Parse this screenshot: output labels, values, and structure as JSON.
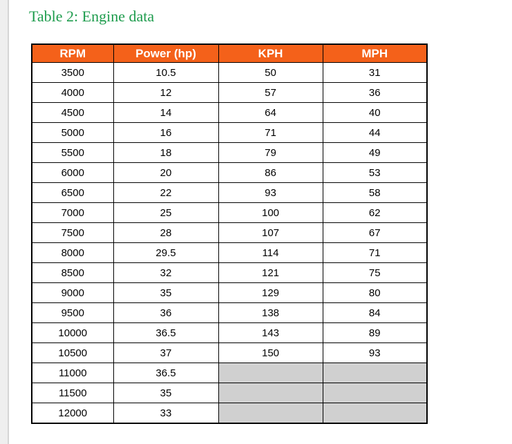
{
  "page": {
    "title": "Table 2: Engine data"
  },
  "colors": {
    "title_color": "#1E9C4D",
    "header_bg": "#F4611A",
    "header_text": "#FFFFFF",
    "empty_cell_bg": "#D0D0D0",
    "border_color": "#000000",
    "page_edge_bg": "#EFEFEF",
    "page_edge_border": "#D5D5D5"
  },
  "table": {
    "headers": [
      "RPM",
      "Power (hp)",
      "KPH",
      "MPH"
    ],
    "rows": [
      [
        "3500",
        "10.5",
        "50",
        "31"
      ],
      [
        "4000",
        "12",
        "57",
        "36"
      ],
      [
        "4500",
        "14",
        "64",
        "40"
      ],
      [
        "5000",
        "16",
        "71",
        "44"
      ],
      [
        "5500",
        "18",
        "79",
        "49"
      ],
      [
        "6000",
        "20",
        "86",
        "53"
      ],
      [
        "6500",
        "22",
        "93",
        "58"
      ],
      [
        "7000",
        "25",
        "100",
        "62"
      ],
      [
        "7500",
        "28",
        "107",
        "67"
      ],
      [
        "8000",
        "29.5",
        "114",
        "71"
      ],
      [
        "8500",
        "32",
        "121",
        "75"
      ],
      [
        "9000",
        "35",
        "129",
        "80"
      ],
      [
        "9500",
        "36",
        "138",
        "84"
      ],
      [
        "10000",
        "36.5",
        "143",
        "89"
      ],
      [
        "10500",
        "37",
        "150",
        "93"
      ],
      [
        "11000",
        "36.5",
        "",
        ""
      ],
      [
        "11500",
        "35",
        "",
        ""
      ],
      [
        "12000",
        "33",
        "",
        ""
      ]
    ]
  }
}
